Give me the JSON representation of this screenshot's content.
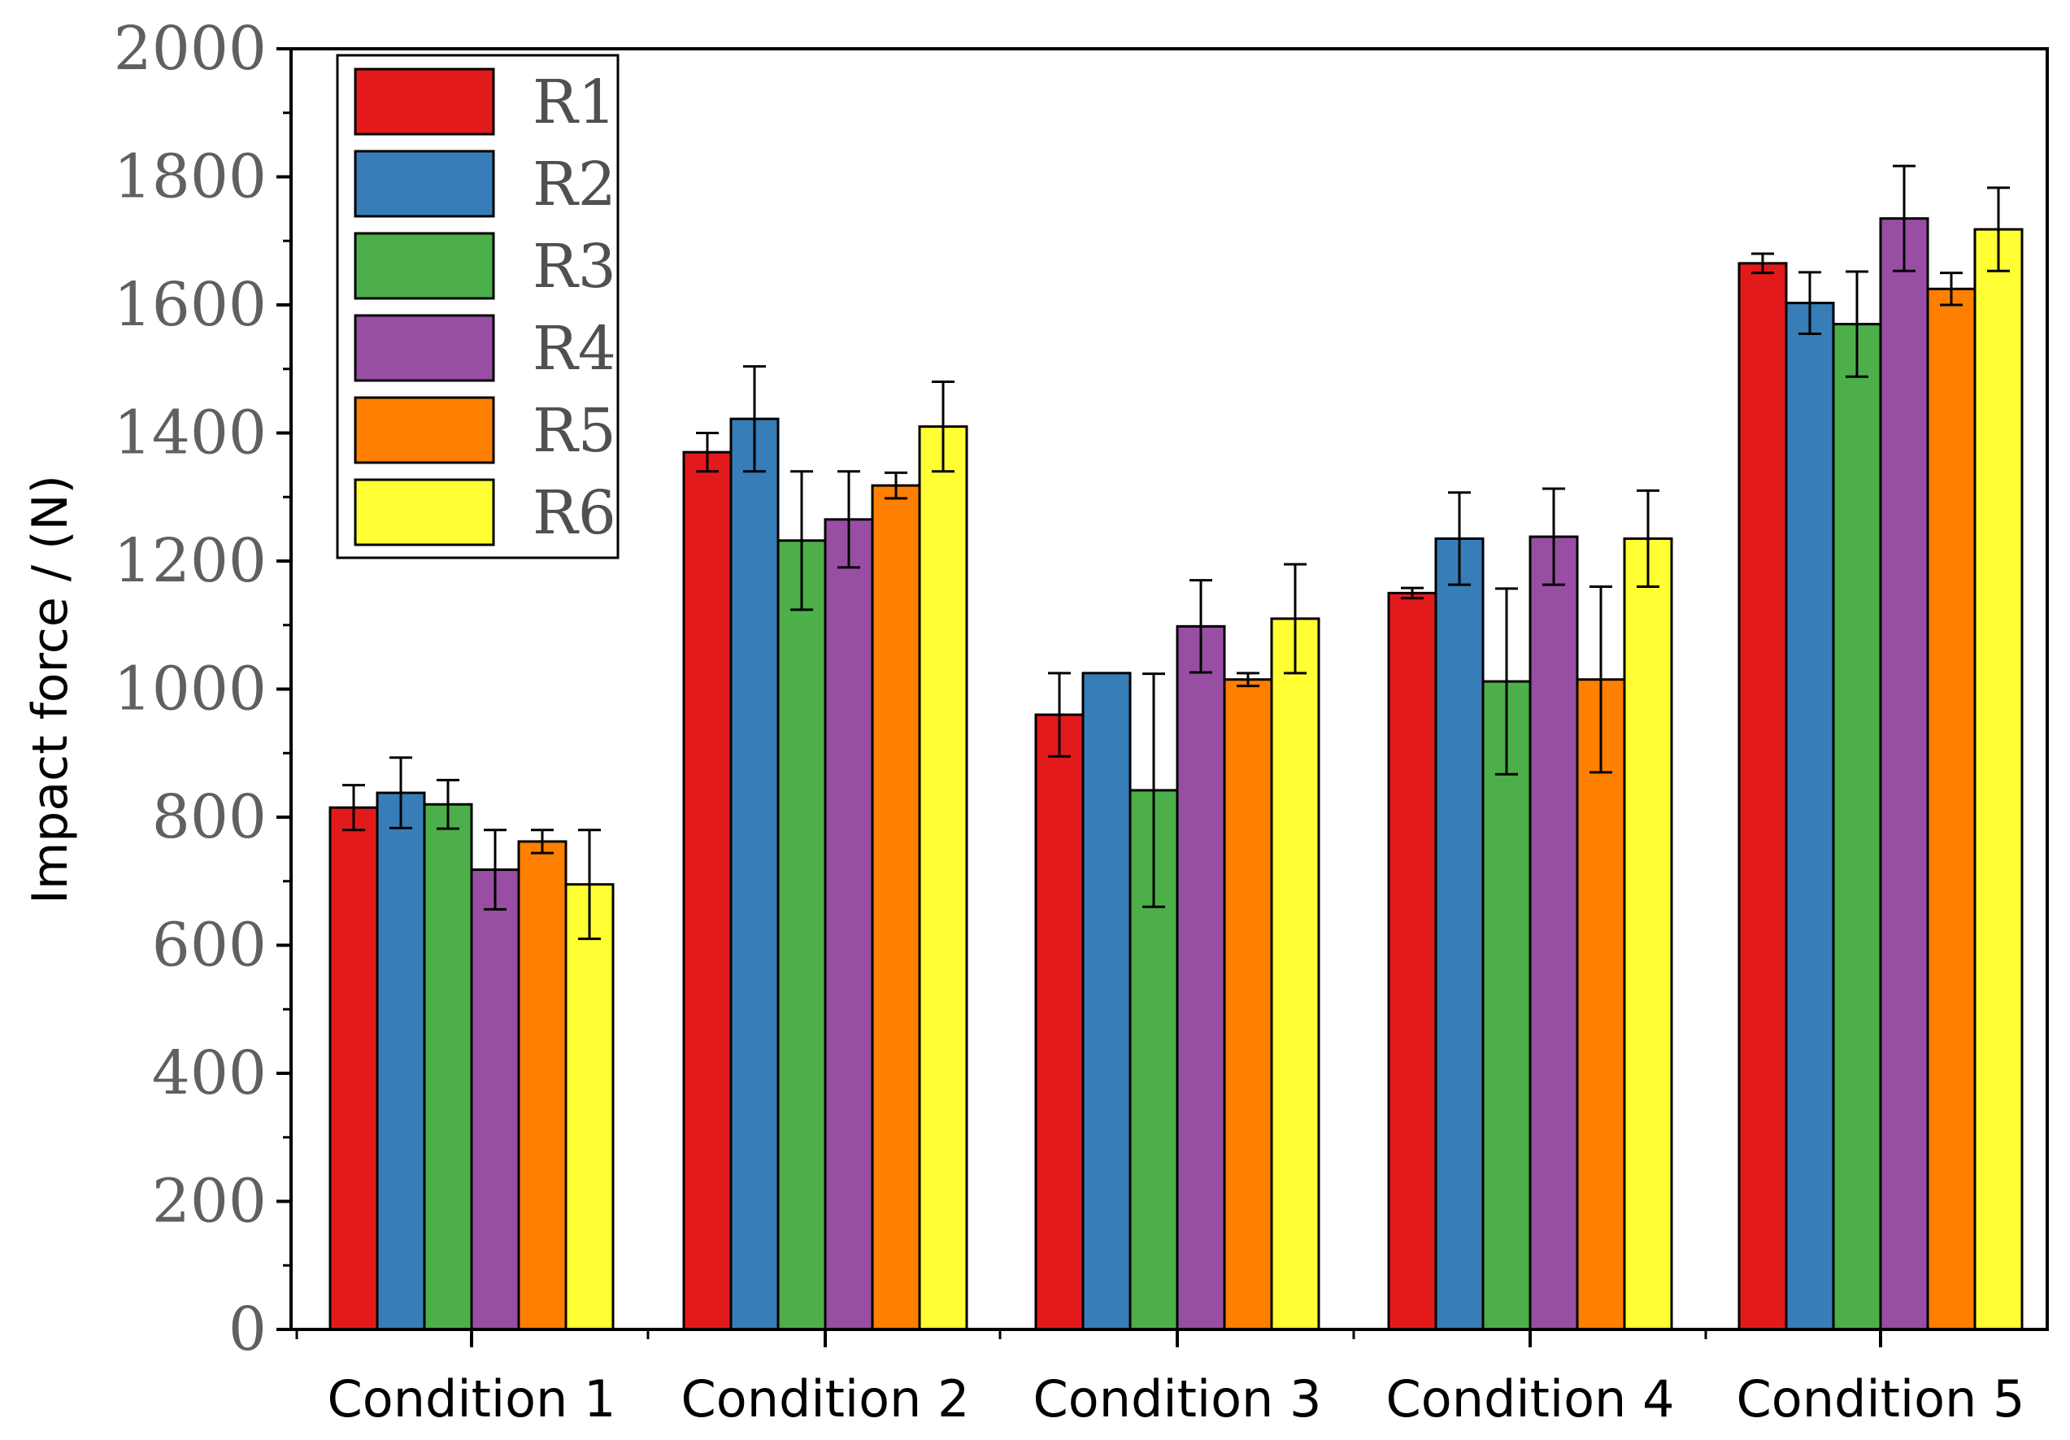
{
  "chart_data": {
    "type": "bar",
    "title": "",
    "xlabel": "",
    "ylabel": "Impact force / (N)",
    "ylim": [
      0,
      2000
    ],
    "yticks": [
      0,
      200,
      400,
      600,
      800,
      1000,
      1200,
      1400,
      1600,
      1800,
      2000
    ],
    "categories": [
      "Condition 1",
      "Condition 2",
      "Condition 3",
      "Condition 4",
      "Condition 5"
    ],
    "legend_position": "top-left",
    "grid": false,
    "series": [
      {
        "name": "R1",
        "color": "#e31a1c",
        "values": [
          815,
          1370,
          960,
          1150,
          1665
        ],
        "errors": [
          35,
          30,
          65,
          8,
          15
        ]
      },
      {
        "name": "R2",
        "color": "#377eb8",
        "values": [
          838,
          1422,
          1025,
          1235,
          1603
        ],
        "errors": [
          55,
          82,
          0,
          72,
          48
        ]
      },
      {
        "name": "R3",
        "color": "#4daf4a",
        "values": [
          820,
          1232,
          842,
          1012,
          1570
        ],
        "errors": [
          38,
          108,
          182,
          145,
          82
        ]
      },
      {
        "name": "R4",
        "color": "#984ea3",
        "values": [
          718,
          1265,
          1098,
          1238,
          1735
        ],
        "errors": [
          62,
          75,
          72,
          75,
          82
        ]
      },
      {
        "name": "R5",
        "color": "#ff7f00",
        "values": [
          762,
          1318,
          1015,
          1015,
          1625
        ],
        "errors": [
          18,
          20,
          10,
          145,
          25
        ]
      },
      {
        "name": "R6",
        "color": "#ffff33",
        "values": [
          695,
          1410,
          1110,
          1235,
          1718
        ],
        "errors": [
          85,
          70,
          85,
          75,
          65
        ]
      }
    ]
  }
}
